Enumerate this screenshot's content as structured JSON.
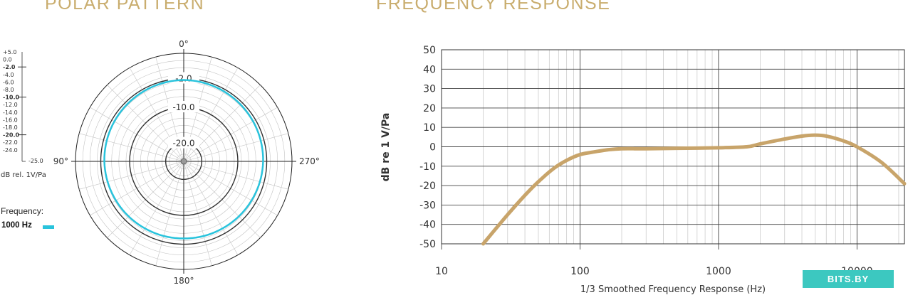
{
  "titles": {
    "polar": "POLAR PATTERN",
    "frequency": "FREQUENCY RESPONSE"
  },
  "colors": {
    "title": "#c9ad6e",
    "polar_series": "#29c3dc",
    "polar_ref": "#333333",
    "freq_series": "#c8a46a",
    "grid_major": "#444444",
    "grid_minor": "#cccccc"
  },
  "watermark": "BITS.BY",
  "chart_data": [
    {
      "type": "polar",
      "title": "POLAR PATTERN",
      "scale_labels": [
        "+5.0",
        "0.0",
        "-2.0",
        "-4.0",
        "-6.0",
        "-8.0",
        "-10.0",
        "-12.0",
        "-14.0",
        "-16.0",
        "-18.0",
        "-20.0",
        "-22.0",
        "-24.0"
      ],
      "scale_min_label": "-25.0",
      "scale_unit": "dB rel. 1V/Pa",
      "rlim": [
        -25,
        5
      ],
      "angle_labels": [
        "0°",
        "90°",
        "180°",
        "270°"
      ],
      "ring_labels": [
        "-2.0",
        "-10.0",
        "-20.0"
      ],
      "legend": {
        "title": "Frequency:",
        "entries": [
          {
            "name": "1000 Hz",
            "color": "#29c3dc"
          }
        ]
      },
      "series": [
        {
          "name": "1000 Hz",
          "angles": [
            0,
            30,
            60,
            90,
            120,
            150,
            180,
            210,
            240,
            270,
            300,
            330
          ],
          "values": [
            -2.4,
            -2.6,
            -2.8,
            -3.0,
            -3.3,
            -3.5,
            -3.6,
            -3.5,
            -3.3,
            -3.0,
            -2.8,
            -2.6
          ]
        }
      ]
    },
    {
      "type": "line",
      "title": "FREQUENCY RESPONSE",
      "xlabel": "1/3 Smoothed Frequency Response (Hz)",
      "ylabel": "dB re 1 V/Pa",
      "xscale": "log",
      "xlim": [
        10,
        22000
      ],
      "ylim": [
        -50,
        50
      ],
      "xticks": [
        10,
        100,
        1000,
        10000
      ],
      "xtick_labels": [
        "10",
        "100",
        "1000",
        "10000"
      ],
      "yticks": [
        50,
        40,
        30,
        20,
        10,
        0,
        -10,
        -20,
        -30,
        -40,
        -50
      ],
      "grid": true,
      "series": [
        {
          "name": "",
          "x": [
            20,
            30,
            40,
            50,
            65,
            80,
            100,
            130,
            160,
            200,
            300,
            500,
            1000,
            1600,
            2000,
            3000,
            4000,
            5000,
            6000,
            8000,
            10000,
            15000,
            22000
          ],
          "y": [
            -50,
            -35,
            -25,
            -18,
            -11,
            -7,
            -4,
            -2.5,
            -1.5,
            -1,
            -1,
            -0.8,
            -0.5,
            0,
            1.5,
            4,
            5.5,
            6,
            5.5,
            3,
            0,
            -8,
            -19
          ]
        }
      ]
    }
  ]
}
